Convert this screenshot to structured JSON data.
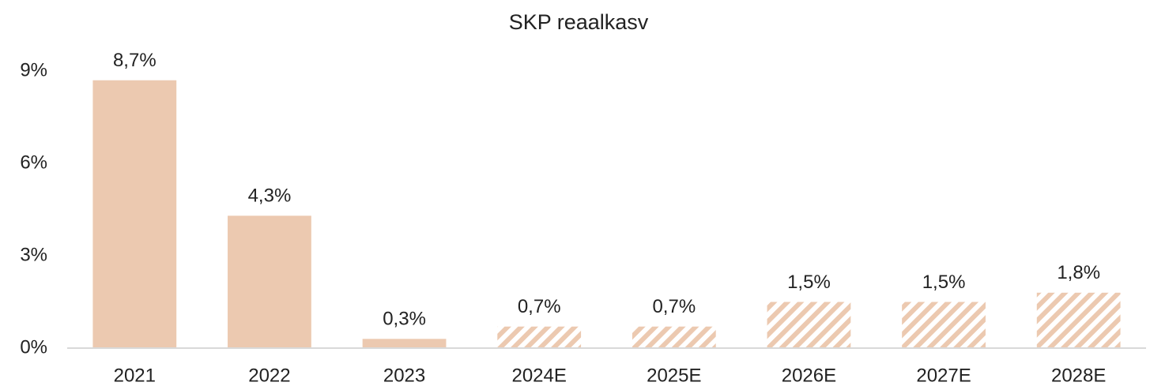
{
  "chart_data": {
    "type": "bar",
    "title": "SKP reaalkasv",
    "categories": [
      "2021",
      "2022",
      "2023",
      "2024E",
      "2025E",
      "2026E",
      "2027E",
      "2028E"
    ],
    "values": [
      8.7,
      4.3,
      0.3,
      0.7,
      0.7,
      1.5,
      1.5,
      1.8
    ],
    "value_labels": [
      "8,7%",
      "4,3%",
      "0,3%",
      "0,7%",
      "0,7%",
      "1,5%",
      "1,5%",
      "1,8%"
    ],
    "hatched": [
      false,
      false,
      false,
      true,
      true,
      true,
      true,
      true
    ],
    "color": "#ecc9b0",
    "ylim": [
      0,
      9
    ],
    "yticks": [
      {
        "value": 0,
        "label": "0%"
      },
      {
        "value": 3,
        "label": "3%"
      },
      {
        "value": 6,
        "label": "6%"
      },
      {
        "value": 9,
        "label": "9%"
      }
    ],
    "grid": false
  }
}
